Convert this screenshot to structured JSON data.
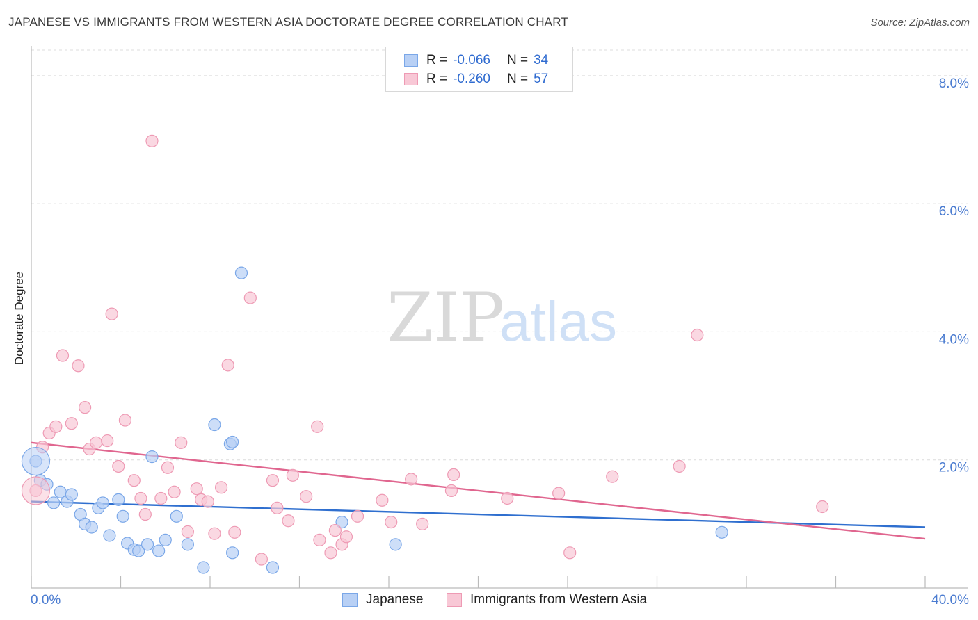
{
  "title": "JAPANESE VS IMMIGRANTS FROM WESTERN ASIA DOCTORATE DEGREE CORRELATION CHART",
  "source": "Source: ZipAtlas.com",
  "watermark": {
    "zip": "ZIP",
    "atlas": "atlas"
  },
  "legend": {
    "rows": [
      {
        "r_label": "R =",
        "r_value": "-0.066",
        "n_label": "N =",
        "n_value": "34"
      },
      {
        "r_label": "R =",
        "r_value": "-0.260",
        "n_label": "N =",
        "n_value": "57"
      }
    ]
  },
  "chart_data": {
    "type": "scatter",
    "title": "JAPANESE VS IMMIGRANTS FROM WESTERN ASIA DOCTORATE DEGREE CORRELATION CHART",
    "xlabel": "",
    "ylabel": "Doctorate Degree",
    "xlim": [
      0,
      40
    ],
    "ylim": [
      0,
      8.4
    ],
    "x_tick_labels": [
      "0.0%",
      "40.0%"
    ],
    "y_ticks": [
      2,
      4,
      6,
      8
    ],
    "y_tick_labels": [
      "2.0%",
      "4.0%",
      "6.0%",
      "8.0%"
    ],
    "grid": true,
    "legend_position": "top-center",
    "series": [
      {
        "name": "Japanese",
        "color": "#7aa7e8",
        "fill": "#b8d0f5",
        "line_color": "#2f6fcf",
        "trend": [
          [
            0,
            1.35
          ],
          [
            40,
            0.95
          ]
        ],
        "points": [
          [
            0.2,
            1.98
          ],
          [
            0.4,
            1.68
          ],
          [
            0.7,
            1.62
          ],
          [
            1.0,
            1.33
          ],
          [
            1.3,
            1.5
          ],
          [
            1.6,
            1.35
          ],
          [
            1.8,
            1.46
          ],
          [
            2.2,
            1.15
          ],
          [
            2.4,
            1.0
          ],
          [
            2.7,
            0.95
          ],
          [
            3.0,
            1.25
          ],
          [
            3.2,
            1.33
          ],
          [
            3.5,
            0.82
          ],
          [
            3.9,
            1.38
          ],
          [
            4.1,
            1.12
          ],
          [
            4.3,
            0.7
          ],
          [
            4.6,
            0.6
          ],
          [
            4.8,
            0.58
          ],
          [
            5.2,
            0.68
          ],
          [
            5.4,
            2.05
          ],
          [
            5.7,
            0.58
          ],
          [
            6.0,
            0.75
          ],
          [
            6.5,
            1.12
          ],
          [
            7.0,
            0.68
          ],
          [
            7.7,
            0.32
          ],
          [
            8.2,
            2.55
          ],
          [
            8.9,
            2.25
          ],
          [
            9.0,
            2.28
          ],
          [
            9.4,
            4.92
          ],
          [
            9.0,
            0.55
          ],
          [
            10.8,
            0.32
          ],
          [
            13.9,
            1.03
          ],
          [
            16.3,
            0.68
          ],
          [
            30.9,
            0.87
          ]
        ]
      },
      {
        "name": "Immigrants from Western Asia",
        "color": "#ee9ab4",
        "fill": "#f8c8d6",
        "line_color": "#e0668f",
        "trend": [
          [
            0,
            2.27
          ],
          [
            40,
            0.77
          ]
        ],
        "points": [
          [
            0.2,
            1.52
          ],
          [
            0.5,
            2.2
          ],
          [
            0.8,
            2.42
          ],
          [
            1.1,
            2.52
          ],
          [
            1.4,
            3.63
          ],
          [
            1.8,
            2.57
          ],
          [
            2.1,
            3.47
          ],
          [
            2.4,
            2.82
          ],
          [
            2.6,
            2.17
          ],
          [
            2.9,
            2.27
          ],
          [
            3.4,
            2.3
          ],
          [
            3.6,
            4.28
          ],
          [
            3.9,
            1.9
          ],
          [
            4.2,
            2.62
          ],
          [
            4.6,
            1.68
          ],
          [
            4.9,
            1.4
          ],
          [
            5.1,
            1.15
          ],
          [
            5.4,
            6.98
          ],
          [
            5.8,
            1.4
          ],
          [
            6.1,
            1.88
          ],
          [
            6.4,
            1.5
          ],
          [
            6.7,
            2.27
          ],
          [
            7.0,
            0.88
          ],
          [
            7.4,
            1.55
          ],
          [
            7.6,
            1.38
          ],
          [
            7.9,
            1.35
          ],
          [
            8.2,
            0.85
          ],
          [
            8.5,
            1.57
          ],
          [
            8.8,
            3.48
          ],
          [
            9.1,
            0.87
          ],
          [
            9.8,
            4.53
          ],
          [
            10.3,
            0.45
          ],
          [
            10.8,
            1.68
          ],
          [
            11.0,
            1.25
          ],
          [
            11.5,
            1.05
          ],
          [
            11.7,
            1.76
          ],
          [
            12.3,
            1.43
          ],
          [
            12.8,
            2.52
          ],
          [
            12.9,
            0.75
          ],
          [
            13.4,
            0.55
          ],
          [
            13.6,
            0.9
          ],
          [
            13.9,
            0.68
          ],
          [
            14.1,
            0.8
          ],
          [
            14.6,
            1.12
          ],
          [
            15.7,
            1.37
          ],
          [
            16.1,
            1.03
          ],
          [
            17.0,
            1.7
          ],
          [
            17.5,
            1.0
          ],
          [
            18.8,
            1.52
          ],
          [
            18.9,
            1.77
          ],
          [
            21.3,
            1.4
          ],
          [
            23.6,
            1.48
          ],
          [
            24.1,
            0.55
          ],
          [
            26.0,
            1.74
          ],
          [
            29.0,
            1.9
          ],
          [
            29.8,
            3.95
          ],
          [
            35.4,
            1.27
          ]
        ]
      }
    ]
  }
}
